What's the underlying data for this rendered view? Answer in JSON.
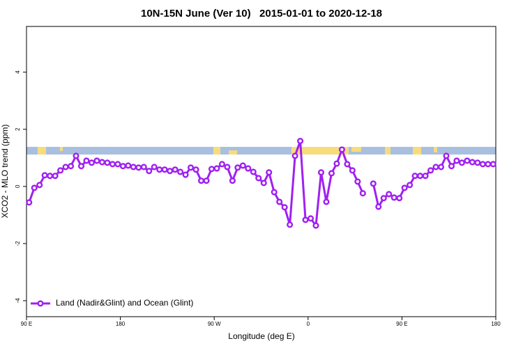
{
  "chart_data": {
    "type": "line",
    "title": "10N-15N June (Ver 10)   2015-01-01 to 2020-12-18",
    "x_label": "Longitude (deg E)",
    "y_label": "XCO2 - MLO trend (ppm)",
    "x": [
      92.5,
      97.5,
      102.5,
      107.5,
      112.5,
      117.5,
      122.5,
      127.5,
      132.5,
      137.5,
      142.5,
      147.5,
      152.5,
      157.5,
      162.5,
      167.5,
      172.5,
      177.5,
      182.5,
      187.5,
      192.5,
      197.5,
      202.5,
      207.5,
      212.5,
      217.5,
      222.5,
      227.5,
      232.5,
      237.5,
      242.5,
      247.5,
      252.5,
      257.5,
      262.5,
      267.5,
      272.5,
      277.5,
      282.5,
      287.5,
      292.5,
      297.5,
      302.5,
      307.5,
      312.5,
      317.5,
      322.5,
      327.5,
      332.5,
      337.5,
      342.5,
      347.5,
      352.5,
      357.5,
      362.5,
      367.5,
      372.5,
      377.5,
      382.5,
      387.5,
      392.5,
      397.5,
      402.5,
      407.5,
      412.5,
      417.5,
      422.5,
      427.5,
      432.5,
      437.5,
      442.5,
      447.5,
      452.5,
      457.5,
      462.5,
      467.5,
      472.5,
      477.5,
      482.5,
      487.5,
      492.5,
      497.5,
      502.5,
      507.5,
      512.5,
      517.5,
      522.5,
      527.5,
      532.5,
      537.5
    ],
    "series": [
      {
        "name": "Land (Nadir&Glint) and Ocean (Glint)",
        "color": "#a020f0",
        "values": [
          -0.56,
          -0.05,
          0.05,
          0.39,
          0.37,
          0.37,
          0.56,
          0.68,
          0.71,
          1.07,
          0.71,
          0.9,
          0.83,
          0.9,
          0.85,
          0.83,
          0.78,
          0.78,
          0.71,
          0.73,
          0.68,
          0.66,
          0.68,
          0.54,
          0.68,
          0.59,
          0.59,
          0.54,
          0.59,
          0.51,
          0.41,
          0.66,
          0.59,
          0.2,
          0.2,
          0.61,
          0.63,
          0.78,
          0.68,
          0.2,
          0.66,
          0.73,
          0.63,
          0.51,
          0.29,
          0.12,
          0.49,
          -0.2,
          -0.54,
          -0.73,
          -1.34,
          1.07,
          1.59,
          -1.17,
          -1.12,
          -1.37,
          0.49,
          -0.54,
          0.46,
          0.8,
          1.29,
          0.78,
          0.56,
          0.17,
          -0.24,
          null,
          0.1,
          -0.71,
          -0.41,
          -0.27,
          -0.39,
          -0.41,
          -0.05,
          0.05,
          0.37,
          0.37,
          0.37,
          0.56,
          0.68,
          0.68,
          1.07,
          0.71,
          0.9,
          0.83,
          0.9,
          0.85,
          0.83,
          0.78,
          0.78,
          0.78
        ]
      }
    ],
    "xlim": [
      90,
      540
    ],
    "xticks": [
      {
        "value": 90,
        "label": "90 E"
      },
      {
        "value": 180,
        "label": "180"
      },
      {
        "value": 270,
        "label": "90 W"
      },
      {
        "value": 360,
        "label": "0"
      },
      {
        "value": 450,
        "label": "90 E"
      },
      {
        "value": 540,
        "label": "180"
      }
    ],
    "ylim": [
      -4.56,
      5.6
    ],
    "yticks": [
      -4,
      -2,
      0,
      2,
      4
    ],
    "legend": "bottom-left"
  }
}
